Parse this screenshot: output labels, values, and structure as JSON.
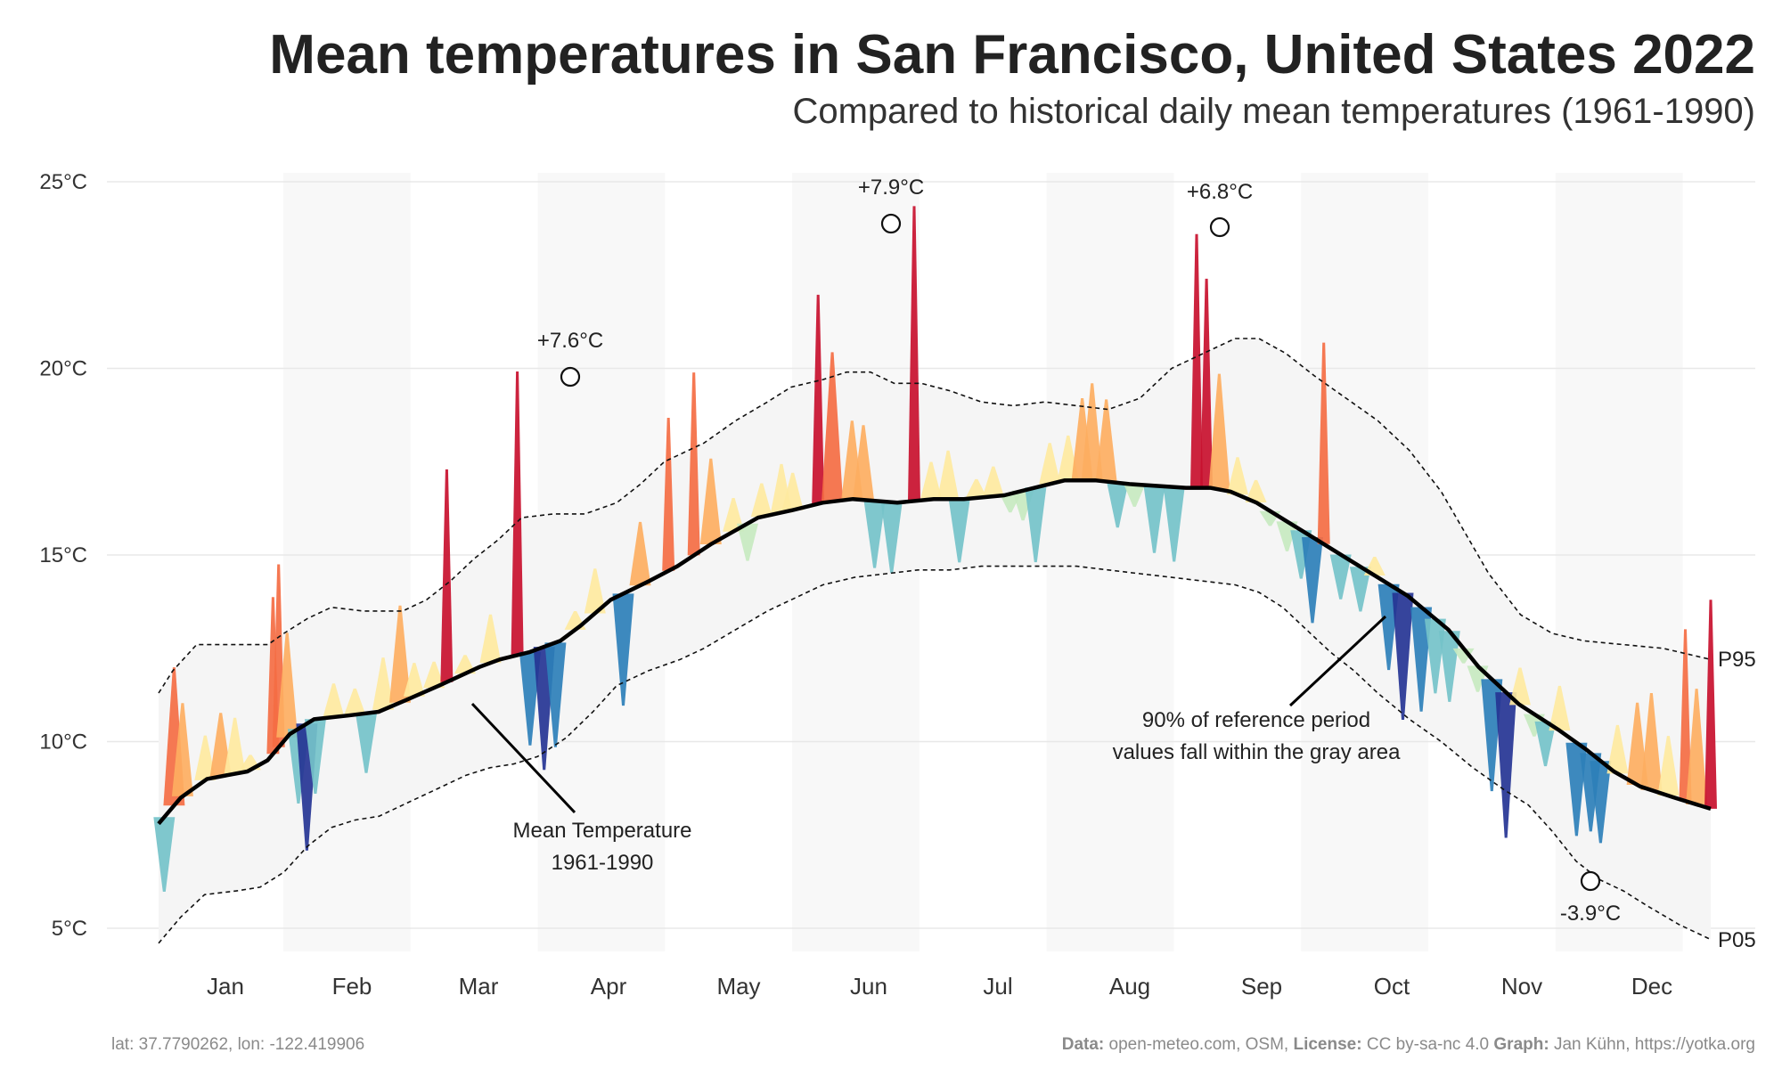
{
  "header": {
    "title": "Mean temperatures in San Francisco, United States 2022",
    "subtitle": "Compared to historical daily mean temperatures (1961-1990)"
  },
  "footer": {
    "coords": "lat: 37.7790262, lon: -122.419906",
    "data_label": "Data:",
    "data_value": " open-meteo.com, OSM, ",
    "license_label": "License:",
    "license_value": " CC by-sa-nc 4.0  ",
    "graph_label": "Graph:",
    "graph_value": " Jan Kühn, https://yotka.org"
  },
  "colors": {
    "band_fill": "#f5f5f5",
    "month_shade": "#f8f8f8",
    "grid": "#e8e8e8",
    "mean_line": "#000000",
    "warm_low": "#fee9a0",
    "warm_mid": "#fdae61",
    "warm_high": "#f46d43",
    "warm_max": "#c8102e",
    "cold_low": "#c7e9c0",
    "cold_mid": "#74c2c9",
    "cold_high": "#2c7fb8",
    "cold_max": "#253494"
  },
  "chart_data": {
    "type": "area",
    "title": "Mean temperatures in San Francisco, United States 2022",
    "subtitle": "Compared to historical daily mean temperatures (1961-1990)",
    "ylim": [
      4.5,
      25.5
    ],
    "y_ticks": [
      {
        "value": 5,
        "label": "5°C"
      },
      {
        "value": 10,
        "label": "10°C"
      },
      {
        "value": 15,
        "label": "15°C"
      },
      {
        "value": 20,
        "label": "20°C"
      },
      {
        "value": 25,
        "label": "25°C"
      }
    ],
    "x_range_days": [
      1,
      365
    ],
    "months": [
      "Jan",
      "Feb",
      "Mar",
      "Apr",
      "May",
      "Jun",
      "Jul",
      "Aug",
      "Sep",
      "Oct",
      "Nov",
      "Dec"
    ],
    "grid": true,
    "reference_mean": {
      "name": "Mean Temperature 1961-1990",
      "points": [
        [
          1,
          7.8
        ],
        [
          12,
          8.5
        ],
        [
          25,
          9.0
        ],
        [
          45,
          9.2
        ],
        [
          55,
          9.5
        ],
        [
          66,
          10.2
        ],
        [
          78,
          10.6
        ],
        [
          95,
          10.7
        ],
        [
          110,
          10.8
        ],
        [
          123,
          11.1
        ],
        [
          140,
          11.5
        ],
        [
          160,
          12.0
        ],
        [
          170,
          12.2
        ],
        [
          185,
          12.4
        ],
        [
          200,
          12.7
        ],
        [
          210,
          13.1
        ],
        [
          225,
          13.8
        ],
        [
          244,
          14.3
        ],
        [
          258,
          14.7
        ],
        [
          275,
          15.3
        ],
        [
          298,
          16.0
        ],
        [
          315,
          16.2
        ],
        [
          330,
          16.4
        ],
        [
          345,
          16.5
        ],
        [
          367,
          16.4
        ],
        [
          385,
          16.5
        ],
        [
          400,
          16.5
        ],
        [
          420,
          16.6
        ],
        [
          435,
          16.8
        ],
        [
          450,
          17.0
        ],
        [
          465,
          17.0
        ],
        [
          482,
          16.9
        ],
        [
          510,
          16.8
        ],
        [
          522,
          16.8
        ],
        [
          532,
          16.7
        ],
        [
          545,
          16.4
        ],
        [
          560,
          15.9
        ],
        [
          575,
          15.4
        ],
        [
          590,
          14.9
        ],
        [
          605,
          14.4
        ],
        [
          620,
          13.9
        ],
        [
          640,
          13.0
        ],
        [
          655,
          12.0
        ],
        [
          675,
          11.0
        ],
        [
          695,
          10.3
        ],
        [
          708,
          9.8
        ],
        [
          722,
          9.2
        ],
        [
          735,
          8.8
        ],
        [
          752,
          8.5
        ],
        [
          770,
          8.2
        ]
      ]
    },
    "band_p95": {
      "name": "P95",
      "points": [
        [
          1,
          11.3
        ],
        [
          10,
          11.9
        ],
        [
          25,
          12.6
        ],
        [
          50,
          12.6
        ],
        [
          70,
          12.6
        ],
        [
          80,
          12.9
        ],
        [
          95,
          13.3
        ],
        [
          110,
          13.6
        ],
        [
          130,
          13.5
        ],
        [
          155,
          13.5
        ],
        [
          170,
          13.8
        ],
        [
          185,
          14.3
        ],
        [
          200,
          14.9
        ],
        [
          215,
          15.4
        ],
        [
          230,
          16.0
        ],
        [
          250,
          16.1
        ],
        [
          270,
          16.1
        ],
        [
          290,
          16.4
        ],
        [
          305,
          16.9
        ],
        [
          320,
          17.5
        ],
        [
          345,
          18.0
        ],
        [
          365,
          18.6
        ],
        [
          385,
          19.1
        ],
        [
          400,
          19.5
        ],
        [
          420,
          19.7
        ],
        [
          435,
          19.9
        ],
        [
          450,
          19.9
        ],
        [
          465,
          19.6
        ],
        [
          482,
          19.6
        ],
        [
          500,
          19.4
        ],
        [
          520,
          19.1
        ],
        [
          540,
          19.0
        ],
        [
          560,
          19.1
        ],
        [
          580,
          19.0
        ],
        [
          600,
          18.9
        ],
        [
          620,
          19.2
        ],
        [
          640,
          20.0
        ],
        [
          660,
          20.4
        ],
        [
          680,
          20.8
        ],
        [
          695,
          20.8
        ],
        [
          712,
          20.4
        ],
        [
          730,
          19.8
        ],
        [
          750,
          19.2
        ],
        [
          770,
          18.6
        ],
        [
          790,
          17.8
        ],
        [
          810,
          16.7
        ],
        [
          825,
          15.6
        ],
        [
          840,
          14.5
        ],
        [
          860,
          13.4
        ],
        [
          880,
          12.9
        ],
        [
          900,
          12.7
        ],
        [
          925,
          12.6
        ],
        [
          950,
          12.5
        ],
        [
          970,
          12.3
        ],
        [
          980,
          12.2
        ]
      ]
    },
    "band_p05": {
      "name": "P05",
      "points": [
        [
          1,
          4.6
        ],
        [
          15,
          5.3
        ],
        [
          30,
          5.9
        ],
        [
          50,
          6.0
        ],
        [
          65,
          6.1
        ],
        [
          80,
          6.5
        ],
        [
          95,
          7.2
        ],
        [
          110,
          7.7
        ],
        [
          125,
          7.9
        ],
        [
          140,
          8.0
        ],
        [
          155,
          8.3
        ],
        [
          175,
          8.7
        ],
        [
          195,
          9.1
        ],
        [
          210,
          9.3
        ],
        [
          225,
          9.4
        ],
        [
          240,
          9.6
        ],
        [
          258,
          10.1
        ],
        [
          275,
          10.8
        ],
        [
          290,
          11.5
        ],
        [
          310,
          11.9
        ],
        [
          330,
          12.2
        ],
        [
          345,
          12.5
        ],
        [
          365,
          13.0
        ],
        [
          385,
          13.5
        ],
        [
          405,
          13.9
        ],
        [
          420,
          14.2
        ],
        [
          440,
          14.4
        ],
        [
          460,
          14.5
        ],
        [
          480,
          14.6
        ],
        [
          500,
          14.6
        ],
        [
          520,
          14.7
        ],
        [
          540,
          14.7
        ],
        [
          560,
          14.7
        ],
        [
          580,
          14.7
        ],
        [
          600,
          14.6
        ],
        [
          620,
          14.5
        ],
        [
          640,
          14.4
        ],
        [
          660,
          14.3
        ],
        [
          680,
          14.2
        ],
        [
          695,
          14.0
        ],
        [
          710,
          13.6
        ],
        [
          725,
          13.0
        ],
        [
          740,
          12.4
        ],
        [
          755,
          11.9
        ],
        [
          770,
          11.3
        ],
        [
          790,
          10.6
        ],
        [
          810,
          10.0
        ],
        [
          830,
          9.3
        ],
        [
          850,
          8.7
        ],
        [
          865,
          8.3
        ],
        [
          880,
          7.6
        ],
        [
          895,
          6.8
        ],
        [
          910,
          6.3
        ],
        [
          925,
          6.0
        ],
        [
          940,
          5.6
        ],
        [
          960,
          5.1
        ],
        [
          975,
          4.8
        ],
        [
          980,
          4.7
        ]
      ]
    },
    "x_days_hint": "x values are day-positions along the year axis, 1 = Jan 1, axis maximum 980 maps to Dec 31",
    "observed_2022_anomaly_spikes": [
      [
        5,
        -2.0
      ],
      [
        12,
        3.7
      ],
      [
        18,
        2.5
      ],
      [
        34,
        1.2
      ],
      [
        45,
        1.7
      ],
      [
        55,
        1.5
      ],
      [
        66,
        0.4
      ],
      [
        82,
        4.2
      ],
      [
        86,
        4.9
      ],
      [
        92,
        2.8
      ],
      [
        100,
        -2.0
      ],
      [
        106,
        -3.4
      ],
      [
        112,
        -2.0
      ],
      [
        125,
        0.9
      ],
      [
        140,
        0.7
      ],
      [
        148,
        -1.6
      ],
      [
        160,
        1.4
      ],
      [
        172,
        2.6
      ],
      [
        182,
        0.9
      ],
      [
        196,
        0.7
      ],
      [
        205,
        5.7
      ],
      [
        218,
        0.5
      ],
      [
        236,
        1.3
      ],
      [
        255,
        7.6
      ],
      [
        264,
        -2.5
      ],
      [
        274,
        -3.3
      ],
      [
        282,
        -2.8
      ],
      [
        296,
        0.5
      ],
      [
        310,
        1.2
      ],
      [
        330,
        -3.0
      ],
      [
        342,
        1.7
      ],
      [
        362,
        4.1
      ],
      [
        380,
        4.9
      ],
      [
        392,
        2.3
      ],
      [
        408,
        0.9
      ],
      [
        418,
        -1.0
      ],
      [
        428,
        0.9
      ],
      [
        442,
        1.3
      ],
      [
        450,
        1.0
      ],
      [
        468,
        5.6
      ],
      [
        478,
        4.0
      ],
      [
        492,
        2.1
      ],
      [
        500,
        2.0
      ],
      [
        508,
        -1.8
      ],
      [
        520,
        -1.9
      ],
      [
        536,
        7.9
      ],
      [
        548,
        1.0
      ],
      [
        560,
        1.3
      ],
      [
        568,
        -1.7
      ],
      [
        580,
        0.5
      ],
      [
        592,
        0.8
      ],
      [
        604,
        -0.5
      ],
      [
        613,
        -0.8
      ],
      [
        622,
        -2.0
      ],
      [
        632,
        1.1
      ],
      [
        645,
        1.2
      ],
      [
        655,
        2.2
      ],
      [
        662,
        2.6
      ],
      [
        672,
        2.2
      ],
      [
        680,
        -1.2
      ],
      [
        692,
        -0.6
      ],
      [
        706,
        -1.8
      ],
      [
        720,
        -2.0
      ],
      [
        736,
        6.8
      ],
      [
        743,
        5.6
      ],
      [
        752,
        3.1
      ],
      [
        765,
        1.0
      ],
      [
        778,
        0.6
      ],
      [
        788,
        -0.4
      ],
      [
        800,
        -0.8
      ],
      [
        810,
        -1.3
      ],
      [
        818,
        -2.3
      ],
      [
        826,
        5.4
      ],
      [
        838,
        -1.2
      ],
      [
        852,
        -1.2
      ],
      [
        862,
        0.5
      ],
      [
        872,
        -2.3
      ],
      [
        882,
        -3.4
      ],
      [
        895,
        -2.8
      ],
      [
        905,
        -2.0
      ],
      [
        915,
        -1.9
      ],
      [
        925,
        -0.4
      ],
      [
        935,
        -0.7
      ],
      [
        945,
        -3.0
      ],
      [
        955,
        -3.9
      ],
      [
        965,
        1.0
      ],
      [
        975,
        -0.6
      ],
      [
        983,
        -1.2
      ],
      [
        993,
        1.2
      ],
      [
        1005,
        -2.5
      ],
      [
        1015,
        -2.1
      ],
      [
        1022,
        -2.2
      ],
      [
        1034,
        1.3
      ],
      [
        1048,
        2.2
      ],
      [
        1058,
        2.6
      ],
      [
        1070,
        1.6
      ],
      [
        1082,
        4.6
      ],
      [
        1090,
        3.1
      ],
      [
        1100,
        5.6
      ]
    ]
  },
  "annotations": {
    "peak_1": "+7.6°C",
    "peak_2": "+7.9°C",
    "peak_3": "+6.8°C",
    "trough_1": "-3.9°C",
    "mean_label_line1": "Mean Temperature",
    "mean_label_line2": "1961-1990",
    "band_label_line1": "90% of reference period",
    "band_label_line2": "values fall within the gray area",
    "p95_label": "P95",
    "p05_label": "P05"
  }
}
